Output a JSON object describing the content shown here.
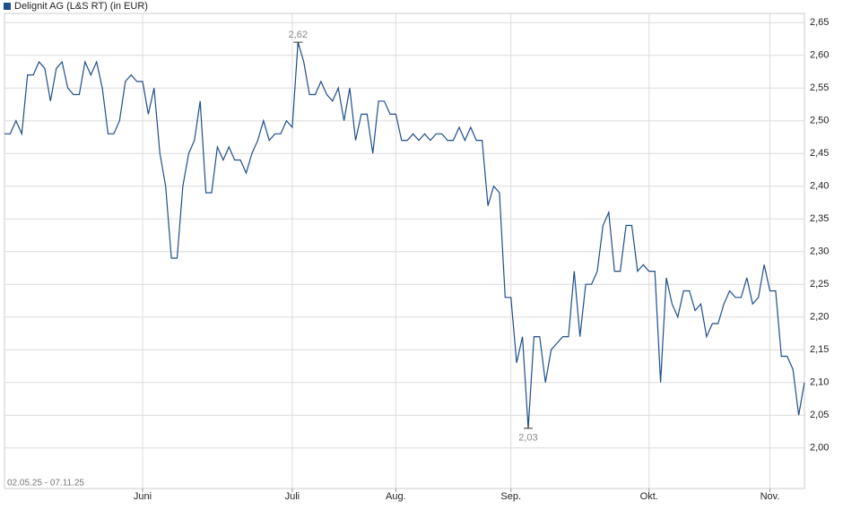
{
  "chart_data": {
    "type": "line",
    "period": "02.05.25 - 07.11.25",
    "categories": [
      null,
      null,
      null,
      null,
      null,
      null,
      null,
      null,
      null,
      null,
      null,
      null,
      null,
      null,
      null,
      null,
      null,
      null,
      null,
      null,
      null,
      null,
      null,
      null,
      "Juni",
      null,
      null,
      null,
      null,
      null,
      null,
      null,
      null,
      null,
      null,
      null,
      null,
      null,
      null,
      null,
      null,
      null,
      null,
      null,
      null,
      null,
      null,
      null,
      null,
      null,
      "Juli",
      null,
      null,
      null,
      null,
      null,
      null,
      null,
      null,
      null,
      null,
      null,
      null,
      null,
      null,
      null,
      null,
      null,
      "Aug.",
      null,
      null,
      null,
      null,
      null,
      null,
      null,
      null,
      null,
      null,
      null,
      null,
      null,
      null,
      null,
      null,
      null,
      null,
      null,
      "Sep.",
      null,
      null,
      null,
      null,
      null,
      null,
      null,
      null,
      null,
      null,
      null,
      null,
      null,
      null,
      null,
      null,
      null,
      null,
      null,
      null,
      null,
      null,
      null,
      "Okt.",
      null,
      null,
      null,
      null,
      null,
      null,
      null,
      null,
      null,
      null,
      null,
      null,
      null,
      null,
      null,
      null,
      null,
      null,
      null,
      null,
      "Nov.",
      null,
      null,
      null,
      null,
      null,
      null
    ],
    "series": [
      {
        "name": "Delignit AG (L&S RT) (in EUR)",
        "color": "#1f4e8c",
        "values": [
          2.48,
          2.48,
          2.5,
          2.48,
          2.57,
          2.57,
          2.59,
          2.58,
          2.53,
          2.58,
          2.59,
          2.55,
          2.54,
          2.54,
          2.59,
          2.57,
          2.59,
          2.55,
          2.48,
          2.48,
          2.5,
          2.56,
          2.57,
          2.56,
          2.56,
          2.51,
          2.55,
          2.45,
          2.4,
          2.29,
          2.29,
          2.4,
          2.45,
          2.47,
          2.53,
          2.39,
          2.39,
          2.46,
          2.44,
          2.46,
          2.44,
          2.44,
          2.42,
          2.45,
          2.47,
          2.5,
          2.47,
          2.48,
          2.48,
          2.5,
          2.49,
          2.62,
          2.59,
          2.54,
          2.54,
          2.56,
          2.54,
          2.53,
          2.55,
          2.5,
          2.55,
          2.47,
          2.51,
          2.51,
          2.45,
          2.53,
          2.53,
          2.51,
          2.51,
          2.47,
          2.47,
          2.48,
          2.47,
          2.48,
          2.47,
          2.48,
          2.48,
          2.47,
          2.47,
          2.49,
          2.47,
          2.49,
          2.47,
          2.47,
          2.37,
          2.4,
          2.39,
          2.23,
          2.23,
          2.13,
          2.17,
          2.03,
          2.17,
          2.17,
          2.1,
          2.15,
          2.16,
          2.17,
          2.17,
          2.27,
          2.17,
          2.25,
          2.25,
          2.27,
          2.34,
          2.36,
          2.27,
          2.27,
          2.34,
          2.34,
          2.27,
          2.28,
          2.27,
          2.27,
          2.1,
          2.26,
          2.22,
          2.2,
          2.24,
          2.24,
          2.21,
          2.22,
          2.17,
          2.19,
          2.19,
          2.22,
          2.24,
          2.23,
          2.23,
          2.26,
          2.22,
          2.23,
          2.28,
          2.24,
          2.24,
          2.14,
          2.14,
          2.12,
          2.05,
          2.1
        ]
      }
    ],
    "annotations": [
      {
        "text": "2,62",
        "value": 2.62
      },
      {
        "text": "2,03",
        "value": 2.03
      }
    ],
    "ylim": [
      1.938,
      2.664
    ],
    "yticks": [
      {
        "value": 2.0,
        "label": "2,00"
      },
      {
        "value": 2.05,
        "label": "2,05"
      },
      {
        "value": 2.1,
        "label": "2,10"
      },
      {
        "value": 2.15,
        "label": "2,15"
      },
      {
        "value": 2.2,
        "label": "2,20"
      },
      {
        "value": 2.25,
        "label": "2,25"
      },
      {
        "value": 2.3,
        "label": "2,30"
      },
      {
        "value": 2.35,
        "label": "2,35"
      },
      {
        "value": 2.4,
        "label": "2,40"
      },
      {
        "value": 2.45,
        "label": "2,45"
      },
      {
        "value": 2.5,
        "label": "2,50"
      },
      {
        "value": 2.55,
        "label": "2,55"
      },
      {
        "value": 2.6,
        "label": "2,60"
      },
      {
        "value": 2.65,
        "label": "2,65"
      }
    ],
    "grid": true
  }
}
